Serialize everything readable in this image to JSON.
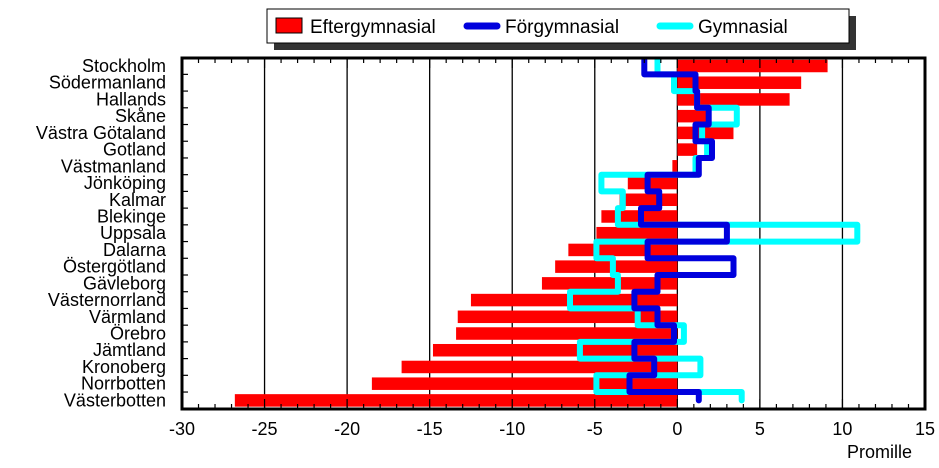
{
  "chart_data": {
    "type": "bar",
    "orientation": "horizontal",
    "title": "",
    "xlabel": "Promille",
    "ylabel": "",
    "xlim": [
      -30,
      15
    ],
    "x_ticks": [
      -30,
      -25,
      -20,
      -15,
      -10,
      -5,
      0,
      5,
      10,
      15
    ],
    "x_tick_labels": [
      "-30",
      "-25",
      "-20",
      "-15",
      "-10",
      "-5",
      "0",
      "5",
      "10",
      "15"
    ],
    "grid": "vertical",
    "legend_position": "top",
    "categories": [
      "Stockholm",
      "Södermanland",
      "Hallands",
      "Skåne",
      "Västra Götaland",
      "Gotland",
      "Västmanland",
      "Jönköping",
      "Kalmar",
      "Blekinge",
      "Uppsala",
      "Dalarna",
      "Östergötland",
      "Gävleborg",
      "Västernorrland",
      "Värmland",
      "Örebro",
      "Jämtland",
      "Kronoberg",
      "Norrbotten",
      "Västerbotten"
    ],
    "series": [
      {
        "name": "Eftergymnasial",
        "kind": "bar",
        "color": "#ff0000",
        "values": [
          9.1,
          7.5,
          6.8,
          1.8,
          3.4,
          1.2,
          -0.3,
          -3.0,
          -3.5,
          -4.6,
          -4.9,
          -6.6,
          -7.4,
          -8.2,
          -12.5,
          -13.3,
          -13.4,
          -14.8,
          -16.7,
          -18.5,
          -26.8
        ]
      },
      {
        "name": "Förgymnasial",
        "kind": "step",
        "color": "#0000dd",
        "values": [
          -2.0,
          1.1,
          1.2,
          1.9,
          1.1,
          2.1,
          1.3,
          -1.8,
          -1.1,
          -2.2,
          3.0,
          -1.8,
          3.4,
          -1.2,
          -2.6,
          -1.2,
          -0.2,
          -2.6,
          -1.4,
          -2.9,
          1.3
        ]
      },
      {
        "name": "Gymnasial",
        "kind": "step",
        "color": "#00ffff",
        "values": [
          -1.2,
          -0.2,
          1.2,
          3.6,
          1.5,
          1.8,
          1.1,
          -4.6,
          -3.3,
          -3.6,
          10.9,
          -4.9,
          -3.9,
          -3.6,
          -6.5,
          -2.4,
          0.4,
          -5.9,
          1.4,
          -4.9,
          3.9
        ]
      }
    ]
  }
}
